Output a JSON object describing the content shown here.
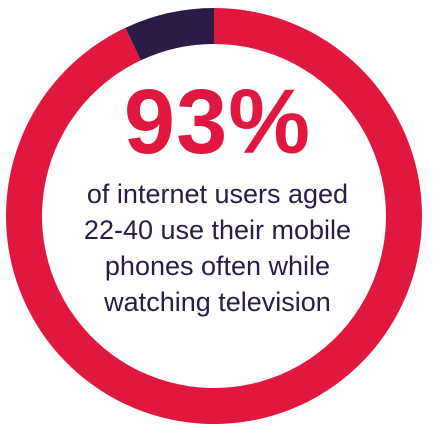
{
  "chart_data": {
    "type": "pie",
    "variant": "donut",
    "categories": [
      "use their mobile phones often while watching television",
      "other"
    ],
    "values": [
      93,
      7
    ],
    "unit": "%",
    "colors": {
      "primary": "#e0183f",
      "remainder": "#2a1b47"
    },
    "big_label": "93%",
    "caption_lines": [
      "of internet users aged",
      "22-40 use their mobile",
      "phones often while",
      "watching television"
    ]
  }
}
